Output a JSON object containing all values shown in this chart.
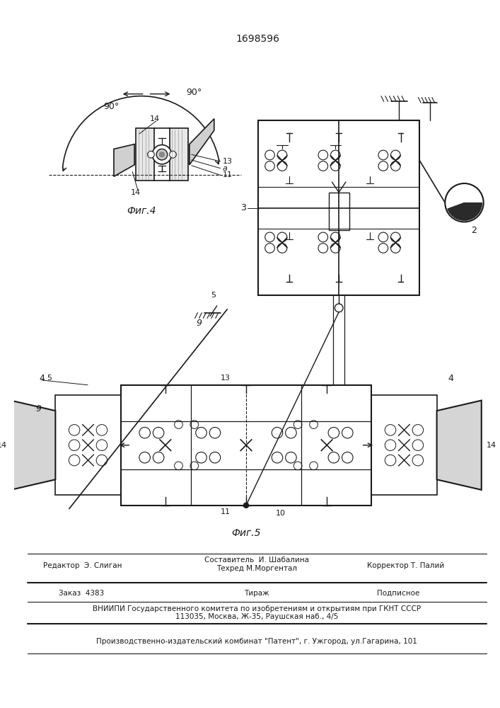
{
  "patent_number": "1698596",
  "fig4_label": "Фиг.4",
  "fig5_label": "Фиг.5",
  "footer_editor": "Редактор  Э. Слиган",
  "footer_composer": "Составитель  И. Шабалина",
  "footer_tech": "Техред М.Моргентал",
  "footer_corrector": "Корректор Т. Палий",
  "footer_order": "Заказ  4383",
  "footer_tirazh": "Тираж",
  "footer_podpisnoe": "Подписное",
  "footer_vniipи": "ВНИИПИ Государственного комитета по изобретениям и открытиям при ГКНТ СССР",
  "footer_addr": "113035, Москва, Ж-35, Раушская наб., 4/5",
  "footer_patent": "Производственно-издательский комбинат \"Патент\", г. Ужгород, ул.Гагарина, 101",
  "bg_color": "#ffffff",
  "lc": "#1a1a1a"
}
